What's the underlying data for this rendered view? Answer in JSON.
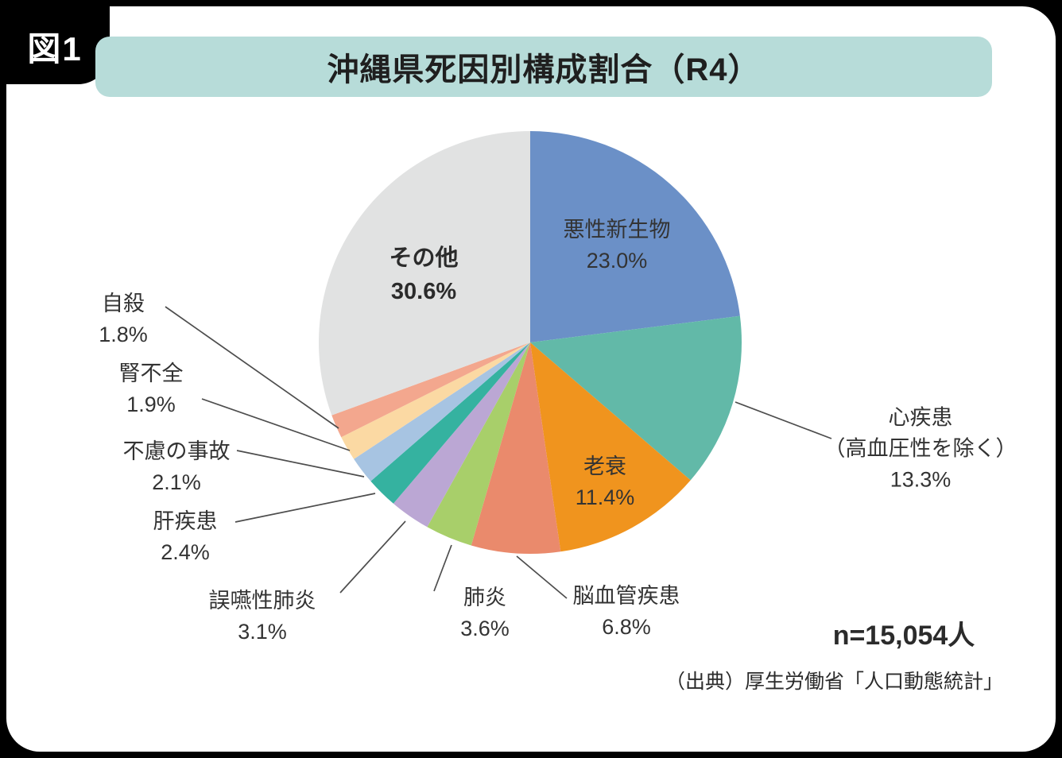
{
  "figure_tag": "図1",
  "title": "沖縄県死因別構成割合（R4）",
  "sample_size": "n=15,054人",
  "source": "（出典）厚生労働省「人口動態統計」",
  "chart_data": {
    "type": "pie",
    "title": "沖縄県死因別構成割合（R4）",
    "start_angle_deg": 0,
    "direction": "clockwise",
    "total_label": "n=15,054人",
    "unit": "%",
    "slices": [
      {
        "name": "悪性新生物",
        "value": 23.0,
        "pct_label": "23.0%",
        "color": "#6b90c7",
        "label_placement": "inside",
        "label_lines": [
          "悪性新生物",
          "23.0%"
        ]
      },
      {
        "name": "心疾患(高血圧性を除く)",
        "value": 13.3,
        "pct_label": "13.3%",
        "color": "#62b9a8",
        "label_placement": "outside-right",
        "label_lines": [
          "心疾患",
          "（高血圧性を除く）",
          "13.3%"
        ]
      },
      {
        "name": "老衰",
        "value": 11.4,
        "pct_label": "11.4%",
        "color": "#f0941e",
        "label_placement": "inside",
        "label_lines": [
          "老衰",
          "11.4%"
        ]
      },
      {
        "name": "脳血管疾患",
        "value": 6.8,
        "pct_label": "6.8%",
        "color": "#ea8a6c",
        "label_placement": "outside-bottom",
        "label_lines": [
          "脳血管疾患",
          "6.8%"
        ]
      },
      {
        "name": "肺炎",
        "value": 3.6,
        "pct_label": "3.6%",
        "color": "#a8cf6a",
        "label_placement": "outside-bottom",
        "label_lines": [
          "肺炎",
          "3.6%"
        ]
      },
      {
        "name": "誤嚥性肺炎",
        "value": 3.1,
        "pct_label": "3.1%",
        "color": "#bba7d4",
        "label_placement": "outside-bottom",
        "label_lines": [
          "誤嚥性肺炎",
          "3.1%"
        ]
      },
      {
        "name": "肝疾患",
        "value": 2.4,
        "pct_label": "2.4%",
        "color": "#35b2a0",
        "label_placement": "outside-left",
        "label_lines": [
          "肝疾患",
          "2.4%"
        ]
      },
      {
        "name": "不慮の事故",
        "value": 2.1,
        "pct_label": "2.1%",
        "color": "#a7c4e2",
        "label_placement": "outside-left",
        "label_lines": [
          "不慮の事故",
          "2.1%"
        ]
      },
      {
        "name": "腎不全",
        "value": 1.9,
        "pct_label": "1.9%",
        "color": "#fbd9a3",
        "label_placement": "outside-left",
        "label_lines": [
          "腎不全",
          "1.9%"
        ]
      },
      {
        "name": "自殺",
        "value": 1.8,
        "pct_label": "1.8%",
        "color": "#f3a78e",
        "label_placement": "outside-left",
        "label_lines": [
          "自殺",
          "1.8%"
        ]
      },
      {
        "name": "その他",
        "value": 30.6,
        "pct_label": "30.6%",
        "color": "#e1e2e2",
        "label_placement": "inside",
        "label_lines": [
          "その他",
          "30.6%"
        ]
      }
    ]
  }
}
